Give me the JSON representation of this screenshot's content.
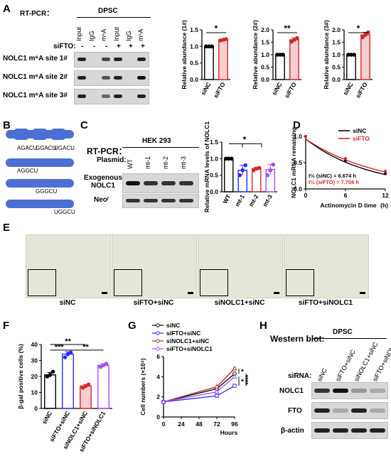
{
  "panels": {
    "A": "A",
    "B": "B",
    "C": "C",
    "D": "D",
    "E": "E",
    "F": "F",
    "G": "G",
    "H": "H"
  },
  "panel_a": {
    "method": "RT-PCR：",
    "group": "DPSC",
    "lanes": [
      "Input",
      "IgG",
      "m⁶A",
      "Input",
      "IgG",
      "m⁶A"
    ],
    "sifto_label": "siFTO:",
    "sifto_signs": [
      "-",
      "-",
      "-",
      "+",
      "+",
      "+"
    ],
    "rows": [
      "NOLC1 m⁶A site 1#",
      "NOLC1 m⁶A site 2#",
      "NOLC1 m⁶A site 3#"
    ]
  },
  "panel_b": {
    "motifs": [
      "AGACU",
      "GGACU",
      "UGACU"
    ],
    "mutants": [
      "AGGCU",
      "GGGCU",
      "UGGCU"
    ]
  },
  "panel_c": {
    "method": "RT-PCR：",
    "cell": "HEK 293",
    "plasmid_label": "Plasmid:",
    "lanes": [
      "WT",
      "mt-1",
      "mt-2",
      "mt-3"
    ],
    "rows": [
      "Exogenous NOLC1",
      "Neoʳ"
    ]
  },
  "panel_e": {
    "labels": [
      "siNC",
      "siFTO+siNC",
      "siNOLC1+siNC",
      "siFTO+siNOLC1"
    ]
  },
  "panel_h": {
    "title": "Western blot:",
    "group": "DPSC",
    "sirna_label": "siRNA:",
    "lanes": [
      "siNC",
      "siFTO+siNC",
      "siNOLC1+siNC",
      "siFTO+siNOLC1"
    ],
    "rows": [
      "NOLC1",
      "FTO",
      "β-actin"
    ]
  },
  "colors": {
    "black": "#000000",
    "red": "#d62728",
    "blue": "#2a2aff",
    "purple": "#a64dff",
    "darkred": "#a0302a",
    "pink_fill": "#f6cfd1"
  },
  "chart_data": [
    {
      "id": "A1",
      "type": "bar",
      "ylabel": "Relative abundance (1#)",
      "categories": [
        "siNC",
        "siFTO"
      ],
      "values": [
        1.0,
        1.2
      ],
      "points": [
        [
          1.0,
          1.0,
          1.0
        ],
        [
          1.18,
          1.2,
          1.22
        ]
      ],
      "ylim": [
        0,
        1.5
      ],
      "yticks": [
        0.0,
        0.5,
        1.0,
        1.5
      ],
      "sig": "*"
    },
    {
      "id": "A2",
      "type": "bar",
      "ylabel": "Relative abundance (2#)",
      "categories": [
        "siNC",
        "siFTO"
      ],
      "values": [
        1.0,
        1.6
      ],
      "points": [
        [
          1.0,
          1.0,
          1.0
        ],
        [
          1.52,
          1.6,
          1.67
        ]
      ],
      "ylim": [
        0,
        2.0
      ],
      "yticks": [
        0.0,
        0.5,
        1.0,
        1.5,
        2.0
      ],
      "sig": "**"
    },
    {
      "id": "A3",
      "type": "bar",
      "ylabel": "Relative abundance (3#)",
      "categories": [
        "siNC",
        "siFTO"
      ],
      "values": [
        1.0,
        1.8
      ],
      "points": [
        [
          1.0,
          1.0,
          1.0
        ],
        [
          1.7,
          1.8,
          1.9
        ]
      ],
      "ylim": [
        0,
        2.0
      ],
      "yticks": [
        0.0,
        0.5,
        1.0,
        1.5,
        2.0
      ],
      "sig": "*"
    },
    {
      "id": "C",
      "type": "bar",
      "ylabel": "Relative mRNA levels of NOLC1",
      "categories": [
        "WT",
        "mt-1",
        "mt-2",
        "mt-3"
      ],
      "values": [
        1.0,
        0.65,
        0.7,
        0.67
      ],
      "points": [
        [
          1.0,
          1.0,
          1.0
        ],
        [
          0.5,
          0.65,
          0.8
        ],
        [
          0.65,
          0.7,
          0.72
        ],
        [
          0.5,
          0.65,
          0.82
        ]
      ],
      "ylim": [
        0,
        1.5
      ],
      "yticks": [
        0.0,
        0.5,
        1.0,
        1.5
      ],
      "sig": "*"
    },
    {
      "id": "D",
      "type": "line",
      "xlabel": "Actinomycin D time",
      "xunit": "(h)",
      "ylabel": "NOLC1 mRNA remaining",
      "x": [
        0,
        6,
        12
      ],
      "xlim": [
        0,
        12
      ],
      "ylim": [
        0,
        1.0
      ],
      "yticks": [
        0.0,
        0.5,
        1.0
      ],
      "series": [
        {
          "name": "siNC",
          "values": [
            1.0,
            0.54,
            0.29
          ]
        },
        {
          "name": "siFTO",
          "values": [
            1.0,
            0.58,
            0.34
          ]
        }
      ],
      "annotations": [
        "t½ (siNC) = 6.674 h",
        "t½ (siFTO) = 7.708 h"
      ]
    },
    {
      "id": "F",
      "type": "bar",
      "ylabel": "β-gal positive cells (%)",
      "categories": [
        "siNC",
        "siFTO+siNC",
        "siNOLC1+siNC",
        "siFTO+siNOLC1"
      ],
      "values": [
        21,
        34,
        14,
        27
      ],
      "points": [
        [
          20,
          21,
          23
        ],
        [
          32,
          34,
          35
        ],
        [
          13,
          14,
          15
        ],
        [
          26,
          27,
          28
        ]
      ],
      "ylim": [
        0,
        40
      ],
      "yticks": [
        0,
        10,
        20,
        30,
        40
      ],
      "sig": [
        "**",
        "***",
        "**"
      ]
    },
    {
      "id": "G",
      "type": "line",
      "xlabel": "Hours",
      "ylabel": "Cell numbers (×10⁴)",
      "x": [
        0,
        24,
        48,
        72,
        96
      ],
      "xlim": [
        0,
        96
      ],
      "xticks": [
        0,
        24,
        48,
        72,
        96
      ],
      "ylim": [
        0,
        6
      ],
      "yticks": [
        0,
        2,
        4,
        6
      ],
      "series": [
        {
          "name": "siNC",
          "values": [
            1.5,
            null,
            null,
            2.8,
            4.3
          ]
        },
        {
          "name": "siFTO+siNC",
          "values": [
            1.5,
            null,
            null,
            2.1,
            3.1
          ]
        },
        {
          "name": "siNOLC1+siNC",
          "values": [
            1.5,
            null,
            null,
            3.0,
            4.8
          ]
        },
        {
          "name": "siFTO+siNOLC1",
          "values": [
            1.5,
            null,
            null,
            2.5,
            4.0
          ]
        }
      ],
      "sig": [
        "*",
        "*",
        "****"
      ]
    }
  ]
}
